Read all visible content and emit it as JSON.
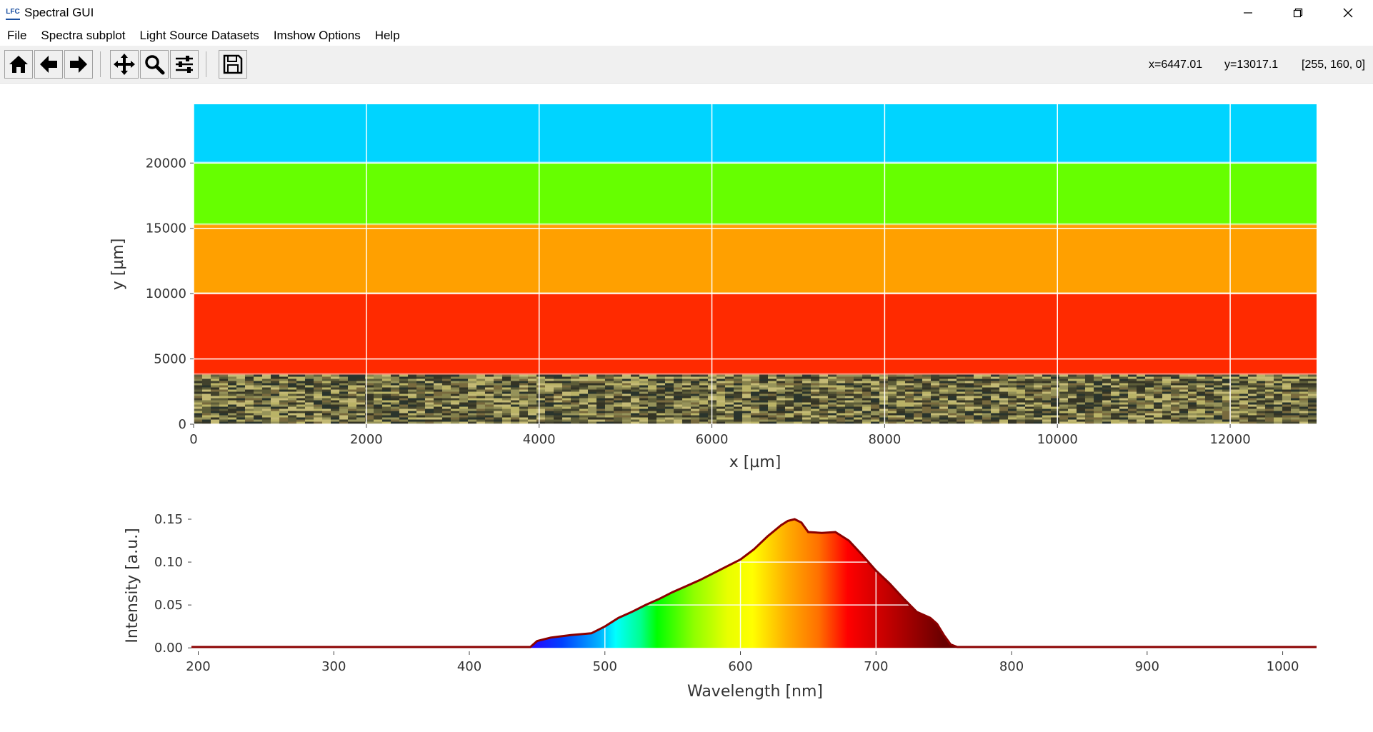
{
  "window": {
    "title": "Spectral GUI",
    "icon": "lfc-app-icon"
  },
  "window_controls": [
    "minimize-icon",
    "restore-icon",
    "close-icon"
  ],
  "menu": [
    "File",
    "Spectra subplot",
    "Light Source Datasets",
    "Imshow Options",
    "Help"
  ],
  "toolbar": {
    "buttons": [
      "home-icon",
      "back-arrow-icon",
      "forward-arrow-icon",
      "pan-icon",
      "zoom-icon",
      "configure-subplots-icon",
      "save-icon"
    ],
    "coords": {
      "x": "x=6447.01",
      "y": "y=13017.1",
      "rgb": "[255, 160, 0]"
    }
  },
  "chart_data": [
    {
      "type": "heatmap",
      "xlabel": "x [µm]",
      "ylabel": "y [µm]",
      "xlim": [
        0,
        13000
      ],
      "ylim": [
        0,
        24500
      ],
      "xticks": [
        0,
        2000,
        4000,
        6000,
        8000,
        10000,
        12000
      ],
      "yticks": [
        0,
        5000,
        10000,
        15000,
        20000
      ],
      "grid": true,
      "bands": [
        {
          "y0": 0,
          "y1": 3800,
          "color": "#6e6a3a",
          "noisy": true
        },
        {
          "y0": 3800,
          "y1": 10000,
          "color": "#ff2a00"
        },
        {
          "y0": 10000,
          "y1": 15300,
          "color": "#ffa000"
        },
        {
          "y0": 15300,
          "y1": 20000,
          "color": "#66ff00"
        },
        {
          "y0": 20000,
          "y1": 24500,
          "color": "#00d4ff"
        }
      ]
    },
    {
      "type": "area",
      "xlabel": "Wavelength [nm]",
      "ylabel": "Intensity [a.u.]",
      "xlim": [
        195,
        1025
      ],
      "ylim": [
        -0.004,
        0.16
      ],
      "xticks": [
        200,
        300,
        400,
        500,
        600,
        700,
        800,
        900,
        1000
      ],
      "yticks": [
        0.0,
        0.05,
        0.1,
        0.15
      ],
      "ytick_labels": [
        "0.00",
        "0.05",
        "0.10",
        "0.15"
      ],
      "line_color": "#8b0000",
      "x": [
        195,
        300,
        400,
        445,
        450,
        460,
        475,
        490,
        500,
        510,
        520,
        530,
        540,
        550,
        560,
        570,
        580,
        590,
        600,
        610,
        620,
        630,
        635,
        640,
        645,
        650,
        660,
        670,
        680,
        690,
        700,
        710,
        720,
        730,
        740,
        745,
        750,
        755,
        760,
        800,
        900,
        1025
      ],
      "y": [
        0.001,
        0.001,
        0.001,
        0.001,
        0.008,
        0.012,
        0.015,
        0.017,
        0.025,
        0.035,
        0.042,
        0.05,
        0.057,
        0.065,
        0.072,
        0.079,
        0.087,
        0.095,
        0.103,
        0.115,
        0.13,
        0.143,
        0.148,
        0.15,
        0.146,
        0.135,
        0.134,
        0.135,
        0.125,
        0.108,
        0.09,
        0.075,
        0.058,
        0.042,
        0.035,
        0.028,
        0.015,
        0.004,
        0.001,
        0.001,
        0.001,
        0.001
      ]
    }
  ]
}
